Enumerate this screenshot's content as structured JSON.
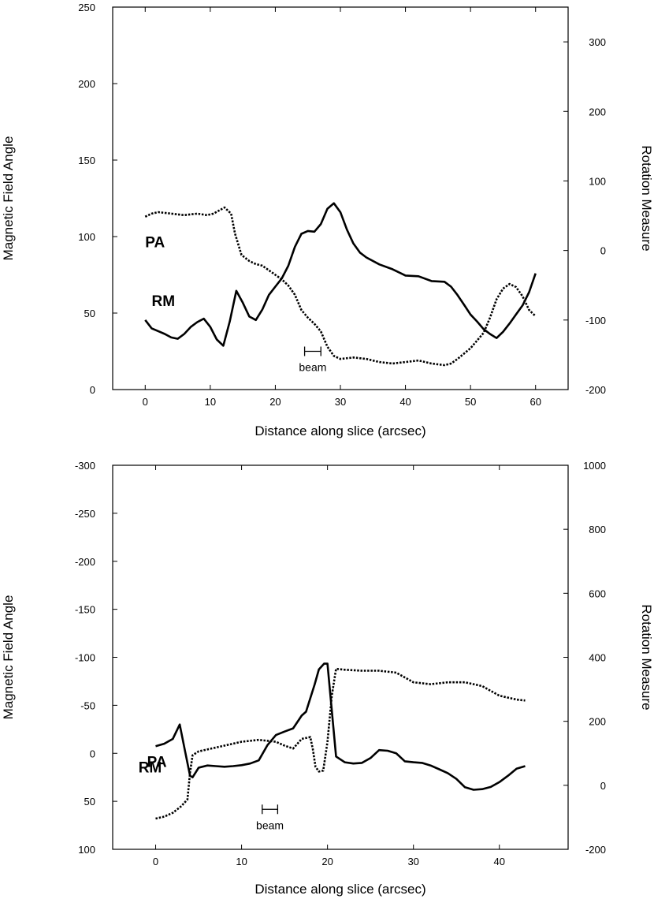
{
  "chart_data": [
    {
      "type": "line",
      "xlabel": "Distance along slice (arcsec)",
      "ylabel": "Magnetic Field Angle",
      "y2label": "Rotation Measure",
      "xlim": [
        -5,
        65
      ],
      "xticks": [
        0,
        10,
        20,
        30,
        40,
        50,
        60
      ],
      "ylim": [
        250,
        0
      ],
      "yticks": [
        0,
        50,
        100,
        150,
        200,
        250
      ],
      "y2lim": [
        -200,
        350
      ],
      "y2ticks": [
        -200,
        -100,
        0,
        100,
        200,
        300
      ],
      "beam": {
        "label": "beam",
        "x": [
          24.5,
          27
        ],
        "y2": -145
      },
      "series": [
        {
          "name": "PA",
          "axis": "left",
          "style": "dotted",
          "label": "PA",
          "label_pos": [
            0,
            93
          ],
          "x": [
            0,
            1,
            2,
            4,
            6,
            8,
            9.5,
            10.5,
            12.2,
            13.2,
            13.8,
            14.8,
            16,
            17,
            18,
            19,
            20,
            21,
            22,
            23,
            24,
            25,
            26,
            27,
            28,
            29,
            30,
            32,
            34,
            36,
            38,
            40,
            42,
            44,
            46,
            47,
            48,
            50,
            52,
            53,
            54,
            55,
            56,
            57,
            58,
            59,
            60
          ],
          "y": [
            113,
            115,
            116,
            115,
            114,
            115,
            114,
            115,
            119,
            115,
            102,
            88,
            84,
            82,
            81,
            78,
            75,
            72,
            68,
            62,
            52,
            47,
            43,
            38,
            28,
            22,
            20,
            21,
            20,
            18,
            17,
            18,
            19,
            17,
            16,
            17,
            20,
            27,
            37,
            47,
            59,
            66,
            69,
            67,
            61,
            52,
            48
          ]
        },
        {
          "name": "RM",
          "axis": "right",
          "style": "solid",
          "label": "RM",
          "label_pos": [
            1,
            -80
          ],
          "x": [
            0,
            1,
            2,
            3,
            4,
            5,
            6,
            7,
            8,
            9,
            10,
            11,
            12,
            13,
            14,
            15,
            16,
            17,
            18,
            19,
            20,
            21,
            22,
            23,
            24,
            25,
            26,
            27,
            28,
            29,
            30,
            31,
            32,
            33,
            34,
            36,
            38,
            40,
            42,
            44,
            46,
            47,
            48,
            49,
            50,
            51,
            52,
            53,
            54,
            55,
            56,
            57,
            58,
            59,
            60
          ],
          "y2": [
            -100,
            -112,
            -116,
            -120,
            -125,
            -127,
            -120,
            -110,
            -103,
            -98,
            -110,
            -128,
            -137,
            -102,
            -58,
            -75,
            -95,
            -100,
            -85,
            -64,
            -52,
            -40,
            -22,
            5,
            24,
            28,
            27,
            38,
            60,
            68,
            55,
            30,
            10,
            -3,
            -10,
            -20,
            -27,
            -36,
            -37,
            -44,
            -45,
            -52,
            -64,
            -78,
            -92,
            -102,
            -113,
            -120,
            -126,
            -117,
            -105,
            -92,
            -79,
            -60,
            -33
          ]
        }
      ]
    },
    {
      "type": "line",
      "xlabel": "Distance along slice (arcsec)",
      "ylabel": "Magnetic Field Angle",
      "y2label": "Rotation Measure",
      "xlim": [
        -5,
        48
      ],
      "xticks": [
        0,
        10,
        20,
        30,
        40
      ],
      "ylim": [
        -300,
        100
      ],
      "yticks": [
        100,
        50,
        0,
        -50,
        -100,
        -150,
        -200,
        -250,
        -300
      ],
      "y2lim": [
        -200,
        1000
      ],
      "y2ticks": [
        -200,
        0,
        200,
        400,
        600,
        800,
        1000
      ],
      "beam": {
        "label": "beam",
        "x": [
          12.4,
          14.2
        ],
        "y2": -75
      },
      "series": [
        {
          "name": "PA",
          "axis": "left",
          "style": "dotted",
          "label": "PA",
          "label_pos": [
            -1,
            14
          ],
          "x": [
            0,
            1,
            2,
            3,
            3.7,
            4,
            4.3,
            5,
            6,
            8,
            10,
            12,
            14,
            15,
            16,
            17,
            18,
            18.3,
            18.6,
            19,
            19.5,
            20,
            20.5,
            21,
            22,
            24,
            26,
            28,
            30,
            32,
            34,
            36,
            38,
            40,
            42,
            43
          ],
          "y": [
            68,
            66,
            62,
            55,
            48,
            20,
            2,
            -2,
            -4,
            -8,
            -12,
            -14,
            -12,
            -8,
            -5,
            -15,
            -17,
            -4,
            14,
            19,
            18,
            -12,
            -60,
            -88,
            -87,
            -86,
            -86,
            -84,
            -74,
            -72,
            -74,
            -74,
            -70,
            -60,
            -56,
            -55
          ]
        },
        {
          "name": "RM",
          "axis": "right",
          "style": "solid",
          "label": "RM",
          "label_pos": [
            -2,
            40
          ],
          "x": [
            0,
            1,
            2,
            2.8,
            3.4,
            4,
            4.3,
            5,
            6,
            7,
            8,
            9,
            10,
            11,
            12,
            13,
            14,
            15,
            16,
            17,
            17.5,
            18,
            18.5,
            19,
            19.6,
            20,
            21,
            22,
            23,
            24,
            25,
            26,
            27,
            28,
            29,
            30,
            31,
            32,
            33,
            34,
            35,
            36,
            37,
            38,
            39,
            40,
            41,
            42,
            43
          ],
          "y2": [
            122,
            130,
            145,
            190,
            110,
            30,
            25,
            55,
            62,
            60,
            58,
            60,
            63,
            68,
            78,
            125,
            157,
            168,
            178,
            218,
            230,
            272,
            315,
            362,
            380,
            380,
            90,
            72,
            68,
            70,
            85,
            110,
            108,
            100,
            75,
            72,
            70,
            62,
            50,
            38,
            20,
            -6,
            -14,
            -12,
            -5,
            10,
            30,
            52,
            60
          ]
        }
      ]
    }
  ]
}
